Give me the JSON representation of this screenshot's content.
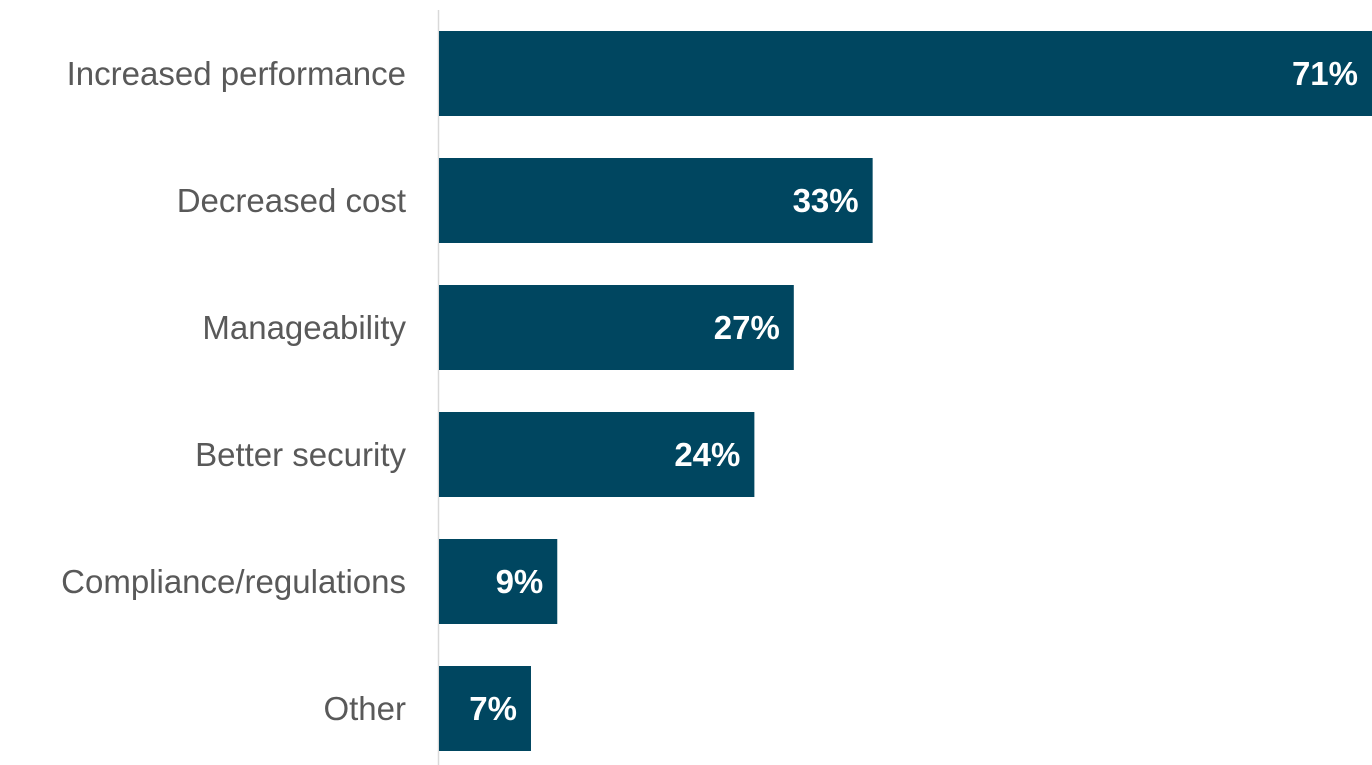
{
  "chart_data": {
    "type": "bar",
    "orientation": "horizontal",
    "categories": [
      "Increased performance",
      "Decreased cost",
      "Manageability",
      "Better security",
      "Compliance/regulations",
      "Other"
    ],
    "values": [
      71,
      33,
      27,
      24,
      9,
      7
    ],
    "value_labels": [
      "71%",
      "33%",
      "27%",
      "24%",
      "9%",
      "7%"
    ],
    "unit": "%",
    "xlim": [
      0,
      71
    ],
    "grid": false,
    "legend": "none",
    "colors": {
      "bar": "#004660",
      "axis": "#d9d9d9",
      "category_text": "#595959",
      "value_text": "#ffffff"
    }
  }
}
